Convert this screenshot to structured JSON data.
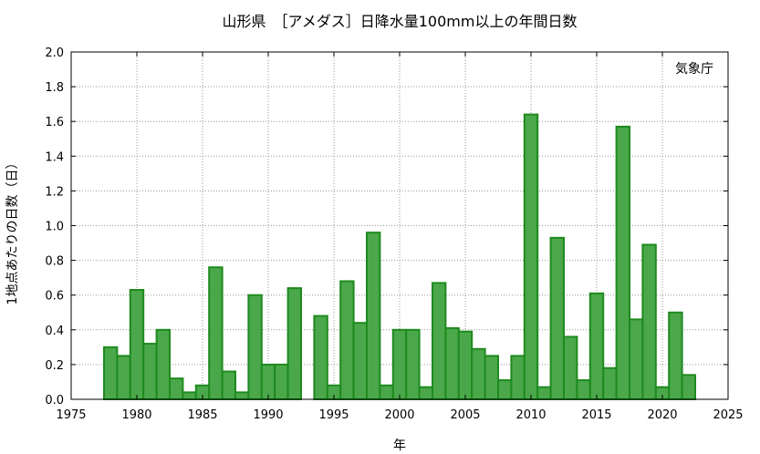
{
  "chart_data": {
    "type": "bar",
    "title": "山形県　［アメダス］日降水量100mm以上の年間日数",
    "xlabel": "年",
    "ylabel": "1地点あたりの日数（日）",
    "annotation": "気象庁",
    "xlim": [
      1975,
      2025
    ],
    "ylim": [
      0,
      2.0
    ],
    "xticks": [
      "1975",
      "1980",
      "1985",
      "1990",
      "1995",
      "2000",
      "2005",
      "2010",
      "2015",
      "2020",
      "2025"
    ],
    "yticks": [
      "0.0",
      "0.2",
      "0.4",
      "0.6",
      "0.8",
      "1.0",
      "1.2",
      "1.4",
      "1.6",
      "1.8",
      "2.0"
    ],
    "grid": true,
    "bar_color": "#4aa84a",
    "bar_edge_color": "#1e8a1e",
    "x": [
      1978,
      1979,
      1980,
      1981,
      1982,
      1983,
      1984,
      1985,
      1986,
      1987,
      1988,
      1989,
      1990,
      1991,
      1992,
      1993,
      1994,
      1995,
      1996,
      1997,
      1998,
      1999,
      2000,
      2001,
      2002,
      2003,
      2004,
      2005,
      2006,
      2007,
      2008,
      2009,
      2010,
      2011,
      2012,
      2013,
      2014,
      2015,
      2016,
      2017,
      2018,
      2019,
      2020,
      2021,
      2022,
      2023
    ],
    "values": [
      0.3,
      0.25,
      0.63,
      0.32,
      0.4,
      0.12,
      0.04,
      0.08,
      0.76,
      0.16,
      0.04,
      0.6,
      0.2,
      0.2,
      0.64,
      0.0,
      0.48,
      0.08,
      0.68,
      0.44,
      0.96,
      0.08,
      0.4,
      0.4,
      0.07,
      0.67,
      0.41,
      0.39,
      0.29,
      0.25,
      0.11,
      0.25,
      1.64,
      0.07,
      0.93,
      0.36,
      0.11,
      0.61,
      0.18,
      1.57,
      0.46,
      0.89,
      0.07,
      0.5,
      0.14,
      0.0
    ]
  }
}
